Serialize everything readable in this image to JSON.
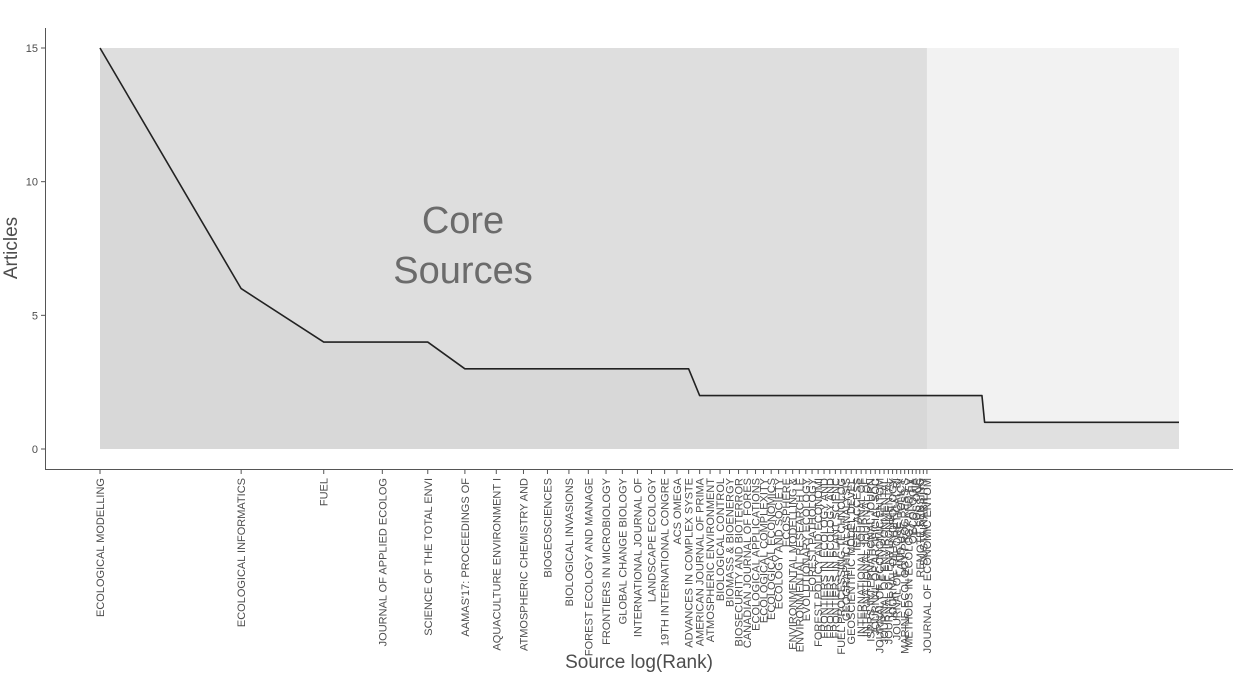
{
  "chart_data": {
    "type": "area",
    "title": "",
    "xlabel": "Source log(Rank)",
    "ylabel": "Articles",
    "ylim": [
      0,
      15
    ],
    "y_ticks": [
      "0",
      "5",
      "10",
      "15"
    ],
    "grid": false,
    "annotation_lines": [
      "Core",
      "Sources"
    ],
    "core_source_count": 58,
    "total_sources": 200,
    "core_region_color": "#dedede",
    "area_color": "#d4d4d4",
    "tail_region_color": "#f2f2f2",
    "line_color": "#222222",
    "series": [
      {
        "rank_start": 1,
        "rank_end": 1,
        "articles": 15
      },
      {
        "rank_start": 2,
        "rank_end": 2,
        "articles": 6
      },
      {
        "rank_start": 3,
        "rank_end": 5,
        "articles": 4
      },
      {
        "rank_start": 6,
        "rank_end": 18,
        "articles": 3
      },
      {
        "rank_start": 19,
        "rank_end": 76,
        "articles": 2
      },
      {
        "rank_start": 77,
        "rank_end": 200,
        "articles": 1
      }
    ],
    "source_labels": [
      "ECOLOGICAL MODELLING",
      "ECOLOGICAL INFORMATICS",
      "FUEL",
      "JOURNAL OF APPLIED ECOLOG",
      "SCIENCE OF THE TOTAL ENVI",
      "AAMAS'17: PROCEEDINGS OF",
      "AQUACULTURE ENVIRONMENT I",
      "ATMOSPHERIC CHEMISTRY AND",
      "BIOGEOSCIENCES",
      "BIOLOGICAL INVASIONS",
      "FOREST ECOLOGY AND MANAGE",
      "FRONTIERS IN MICROBIOLOGY",
      "GLOBAL CHANGE BIOLOGY",
      "INTERNATIONAL JOURNAL OF",
      "LANDSCAPE ECOLOGY",
      "19TH INTERNATIONAL CONGRE",
      "ACS OMEGA",
      "ADVANCES IN COMPLEX SYSTE",
      "AMERICAN JOURNAL OF PRIMA",
      "ATMOSPHERIC ENVIRONMENT",
      "BIOLOGICAL CONTROL",
      "BIOMASS & BIOENERGY",
      "BIOSECURITY AND BIOTERROR",
      "CANADIAN JOURNAL OF FORES",
      "ECOLOGICAL APPLICATIONS",
      "ECOLOGICAL COMPLEXITY",
      "ECOLOGICAL ECONOMICS",
      "ECOLOGY AND SOCIETY",
      "ECOSPHERE",
      "ENVIRONMENTAL MODELLING &",
      "ENVIRONMENTAL RESEARCH LE",
      "EVOLUTIONARY ECOLOGY",
      "FOREST PATHOLOGY",
      "FOREST POLICY AND ECONOMI",
      "FRONTIERS IN ECOLOGY AND",
      "FRONTIERS IN ECOLOGY AND",
      "FRONTIERS IN PLANT SCIENC",
      "FUEL PROCESSING TECHNOLOG",
      "GEOGRAPHICAL ANALYSIS",
      "GEOSCIENTIFIC MODEL DEVEL",
      "IEEE ACCESS",
      "INTERNATIONAL JOURNAL OF",
      "INTERNATIONAL JOURNAL OF",
      "ISPRS INTERNATIONAL JOURN",
      "JOURNAL OF ARTIFICIAL SOC",
      "JOURNAL OF ECONOMIC ENTOM",
      "JOURNAL OF ENVIRONMENTAL",
      "JOURNAL OF ENVIRONMENTAL",
      "JOURNAL OF HYDROLOGY",
      "JOURNAL OF THEORETICAL BI",
      "LAND USE POLICY",
      "MARINE ECOLOGY PROGRESS S",
      "METHODS IN ECOLOGY AND EV",
      "OECOLOGIA",
      "PLOS ONE",
      "REMOTE SENSING",
      "SUSTAINABILITY",
      "JOURNAL OF ECONOMIC ENTOM"
    ]
  }
}
